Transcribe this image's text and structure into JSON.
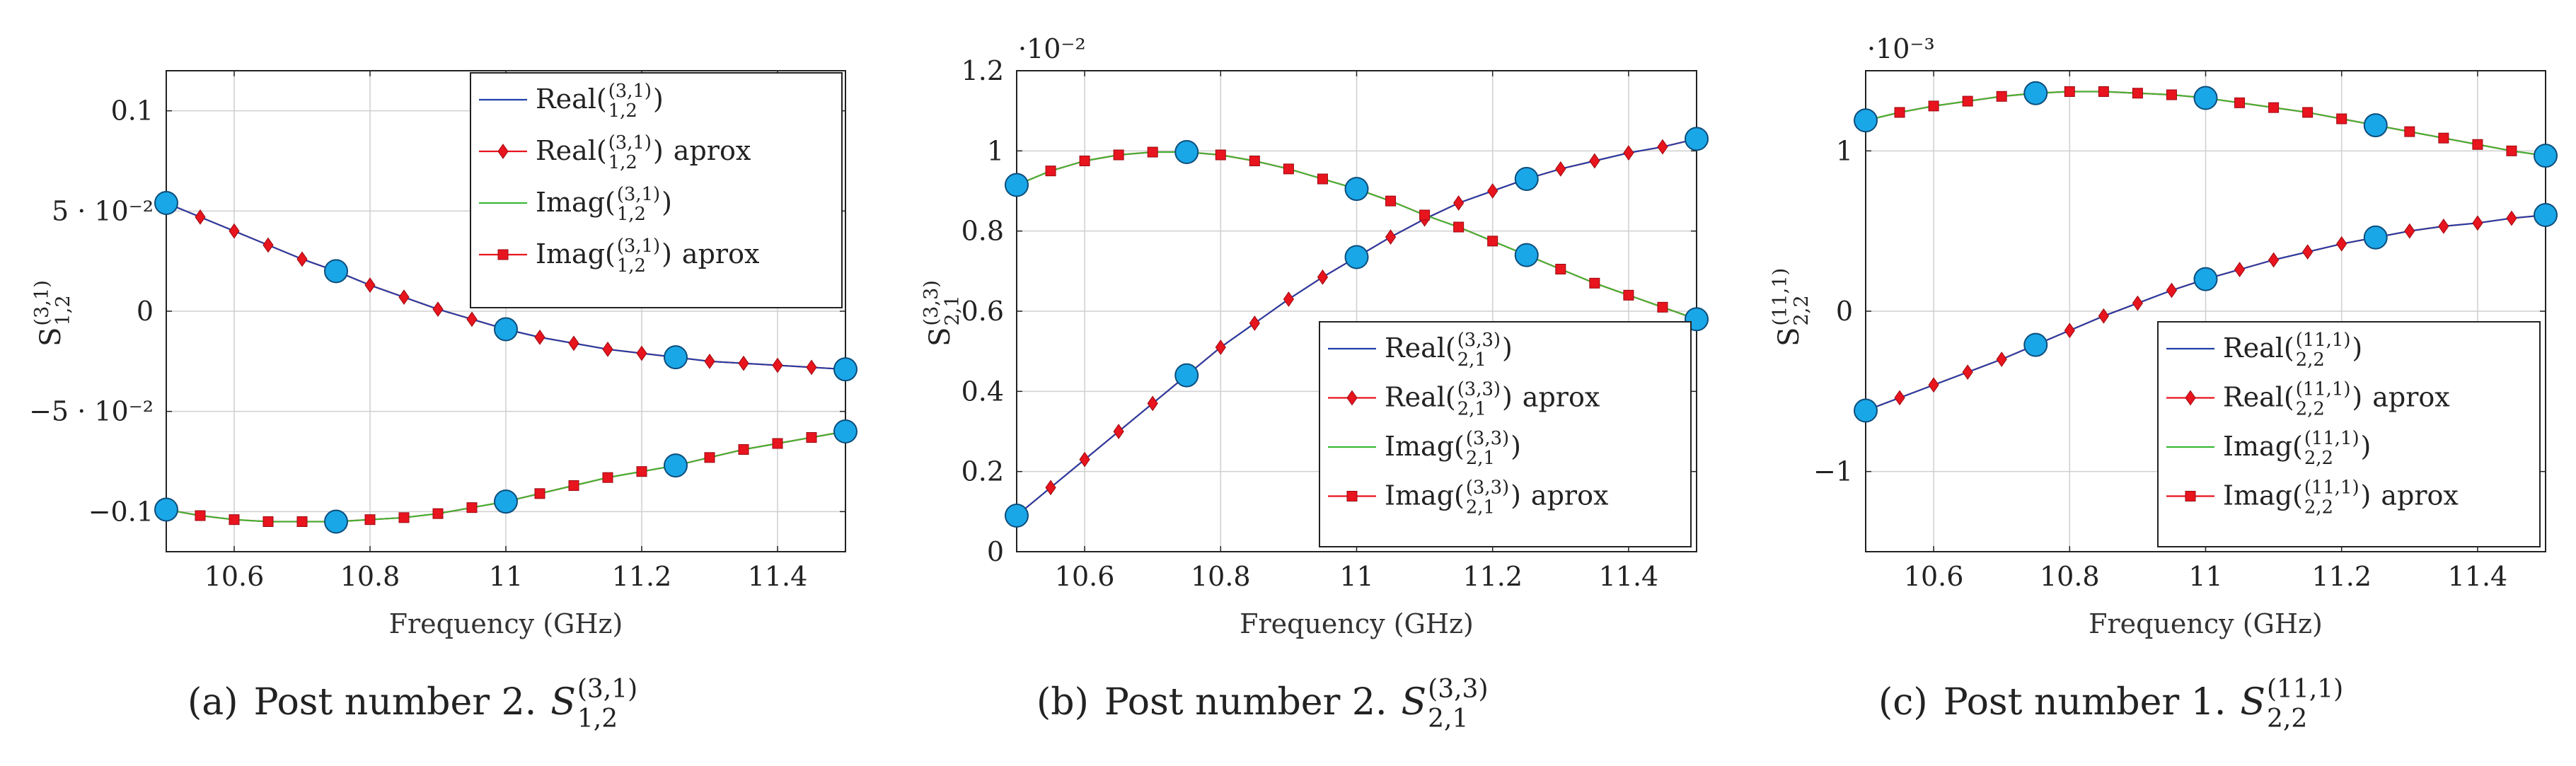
{
  "figure": {
    "xlabel": "Frequency (GHz)",
    "colors": {
      "real_line": "#1f3fa8",
      "real_marker": "#e8141e",
      "imag_line": "#3cb834",
      "imag_marker": "#e8141e",
      "node": "#1aa7e8",
      "node_stroke": "#0c4d7a",
      "grid": "#cfcfcf",
      "axis": "#222222"
    }
  },
  "chart_data": [
    {
      "type": "line",
      "id": "a",
      "caption_prefix": "(a)",
      "caption_text": "Post number 2.",
      "symbol": {
        "base": "S",
        "sup": "(3,1)",
        "sub": "1,2"
      },
      "ylabel": {
        "base": "S",
        "sup": "(3,1)",
        "sub": "1,2"
      },
      "xlabel": "Frequency (GHz)",
      "scale_label": "",
      "xlim": [
        10.5,
        11.5
      ],
      "ylim": [
        -0.12,
        0.12
      ],
      "xticks": [
        "10.6",
        "10.8",
        "11",
        "11.2",
        "11.4"
      ],
      "xtick_values": [
        10.6,
        10.8,
        11.0,
        11.2,
        11.4
      ],
      "yticks": [
        {
          "v": -0.1,
          "t": "−0.1"
        },
        {
          "v": -0.05,
          "t": "−5 · 10⁻²"
        },
        {
          "v": 0,
          "t": "0"
        },
        {
          "v": 0.05,
          "t": "5 · 10⁻²"
        },
        {
          "v": 0.1,
          "t": "0.1"
        }
      ],
      "legend_pos": "top-right",
      "legend": [
        {
          "base": "Real(",
          "sup": "(3,1)",
          "sub": "1,2",
          "tail": ")",
          "suffix": "",
          "kind": "real_line"
        },
        {
          "base": "Real(",
          "sup": "(3,1)",
          "sub": "1,2",
          "tail": ")",
          "suffix": "aprox",
          "kind": "real_marker"
        },
        {
          "base": "Imag(",
          "sup": "(3,1)",
          "sub": "1,2",
          "tail": ")",
          "suffix": "",
          "kind": "imag_line"
        },
        {
          "base": "Imag(",
          "sup": "(3,1)",
          "sub": "1,2",
          "tail": ")",
          "suffix": "aprox",
          "kind": "imag_marker"
        }
      ],
      "x": [
        10.5,
        10.55,
        10.6,
        10.65,
        10.7,
        10.75,
        10.8,
        10.85,
        10.9,
        10.95,
        11.0,
        11.05,
        11.1,
        11.15,
        11.2,
        11.25,
        11.3,
        11.35,
        11.4,
        11.45,
        11.5
      ],
      "series": [
        {
          "name": "Real",
          "values": [
            0.054,
            0.047,
            0.04,
            0.033,
            0.026,
            0.02,
            0.013,
            0.007,
            0.001,
            -0.004,
            -0.009,
            -0.013,
            -0.016,
            -0.019,
            -0.021,
            -0.023,
            -0.025,
            -0.026,
            -0.027,
            -0.028,
            -0.029
          ]
        },
        {
          "name": "Imag",
          "values": [
            -0.099,
            -0.102,
            -0.104,
            -0.105,
            -0.105,
            -0.105,
            -0.104,
            -0.103,
            -0.101,
            -0.098,
            -0.095,
            -0.091,
            -0.087,
            -0.083,
            -0.08,
            -0.077,
            -0.073,
            -0.069,
            -0.066,
            -0.063,
            -0.06
          ]
        }
      ],
      "node_indices": [
        0,
        5,
        10,
        15,
        20
      ]
    },
    {
      "type": "line",
      "id": "b",
      "caption_prefix": "(b)",
      "caption_text": "Post number 2.",
      "symbol": {
        "base": "S",
        "sup": "(3,3)",
        "sub": "2,1"
      },
      "ylabel": {
        "base": "S",
        "sup": "(3,3)",
        "sub": "2,1"
      },
      "xlabel": "Frequency (GHz)",
      "scale_label": "·10⁻²",
      "xlim": [
        10.5,
        11.5
      ],
      "ylim": [
        0,
        1.2
      ],
      "xticks": [
        "10.6",
        "10.8",
        "11",
        "11.2",
        "11.4"
      ],
      "xtick_values": [
        10.6,
        10.8,
        11.0,
        11.2,
        11.4
      ],
      "yticks": [
        {
          "v": 0,
          "t": "0"
        },
        {
          "v": 0.2,
          "t": "0.2"
        },
        {
          "v": 0.4,
          "t": "0.4"
        },
        {
          "v": 0.6,
          "t": "0.6"
        },
        {
          "v": 0.8,
          "t": "0.8"
        },
        {
          "v": 1.0,
          "t": "1"
        },
        {
          "v": 1.2,
          "t": "1.2"
        }
      ],
      "legend_pos": "bottom-right",
      "legend": [
        {
          "base": "Real(",
          "sup": "(3,3)",
          "sub": "2,1",
          "tail": ")",
          "suffix": "",
          "kind": "real_line"
        },
        {
          "base": "Real(",
          "sup": "(3,3)",
          "sub": "2,1",
          "tail": ")",
          "suffix": "aprox",
          "kind": "real_marker"
        },
        {
          "base": "Imag(",
          "sup": "(3,3)",
          "sub": "2,1",
          "tail": ")",
          "suffix": "",
          "kind": "imag_line"
        },
        {
          "base": "Imag(",
          "sup": "(3,3)",
          "sub": "2,1",
          "tail": ")",
          "suffix": "aprox",
          "kind": "imag_marker"
        }
      ],
      "x": [
        10.5,
        10.55,
        10.6,
        10.65,
        10.7,
        10.75,
        10.8,
        10.85,
        10.9,
        10.95,
        11.0,
        11.05,
        11.1,
        11.15,
        11.2,
        11.25,
        11.3,
        11.35,
        11.4,
        11.45,
        11.5
      ],
      "series": [
        {
          "name": "Real",
          "values": [
            0.09,
            0.16,
            0.23,
            0.3,
            0.37,
            0.44,
            0.51,
            0.57,
            0.63,
            0.685,
            0.735,
            0.785,
            0.83,
            0.87,
            0.9,
            0.93,
            0.955,
            0.975,
            0.995,
            1.01,
            1.03
          ]
        },
        {
          "name": "Imag",
          "values": [
            0.915,
            0.95,
            0.975,
            0.99,
            0.997,
            0.997,
            0.99,
            0.975,
            0.955,
            0.93,
            0.905,
            0.875,
            0.84,
            0.81,
            0.775,
            0.74,
            0.705,
            0.67,
            0.64,
            0.61,
            0.58
          ]
        }
      ],
      "node_indices": [
        0,
        5,
        10,
        15,
        20
      ]
    },
    {
      "type": "line",
      "id": "c",
      "caption_prefix": "(c)",
      "caption_text": "Post number 1.",
      "symbol": {
        "base": "S",
        "sup": "(11,1)",
        "sub": "2,2"
      },
      "ylabel": {
        "base": "S",
        "sup": "(11,1)",
        "sub": "2,2"
      },
      "xlabel": "Frequency (GHz)",
      "scale_label": "·10⁻³",
      "xlim": [
        10.5,
        11.5
      ],
      "ylim": [
        -1.5,
        1.5
      ],
      "xticks": [
        "10.6",
        "10.8",
        "11",
        "11.2",
        "11.4"
      ],
      "xtick_values": [
        10.6,
        10.8,
        11.0,
        11.2,
        11.4
      ],
      "yticks": [
        {
          "v": -1,
          "t": "−1"
        },
        {
          "v": 0,
          "t": "0"
        },
        {
          "v": 1,
          "t": "1"
        }
      ],
      "legend_pos": "bottom-right",
      "legend": [
        {
          "base": "Real(",
          "sup": "(11,1)",
          "sub": "2,2",
          "tail": ")",
          "suffix": "",
          "kind": "real_line"
        },
        {
          "base": "Real(",
          "sup": "(11,1)",
          "sub": "2,2",
          "tail": ")",
          "suffix": "aprox",
          "kind": "real_marker"
        },
        {
          "base": "Imag(",
          "sup": "(11,1)",
          "sub": "2,2",
          "tail": ")",
          "suffix": "",
          "kind": "imag_line"
        },
        {
          "base": "Imag(",
          "sup": "(11,1)",
          "sub": "2,2",
          "tail": ")",
          "suffix": "aprox",
          "kind": "imag_marker"
        }
      ],
      "x": [
        10.5,
        10.55,
        10.6,
        10.65,
        10.7,
        10.75,
        10.8,
        10.85,
        10.9,
        10.95,
        11.0,
        11.05,
        11.1,
        11.15,
        11.2,
        11.25,
        11.3,
        11.35,
        11.4,
        11.45,
        11.5
      ],
      "series": [
        {
          "name": "Real",
          "values": [
            -0.62,
            -0.54,
            -0.46,
            -0.38,
            -0.3,
            -0.21,
            -0.12,
            -0.03,
            0.05,
            0.13,
            0.2,
            0.26,
            0.32,
            0.37,
            0.42,
            0.46,
            0.5,
            0.53,
            0.55,
            0.58,
            0.6
          ]
        },
        {
          "name": "Imag",
          "values": [
            1.19,
            1.24,
            1.28,
            1.31,
            1.34,
            1.36,
            1.37,
            1.37,
            1.36,
            1.35,
            1.33,
            1.3,
            1.27,
            1.24,
            1.2,
            1.16,
            1.12,
            1.08,
            1.04,
            1.0,
            0.97
          ]
        }
      ],
      "node_indices": [
        0,
        5,
        10,
        15,
        20
      ]
    }
  ]
}
